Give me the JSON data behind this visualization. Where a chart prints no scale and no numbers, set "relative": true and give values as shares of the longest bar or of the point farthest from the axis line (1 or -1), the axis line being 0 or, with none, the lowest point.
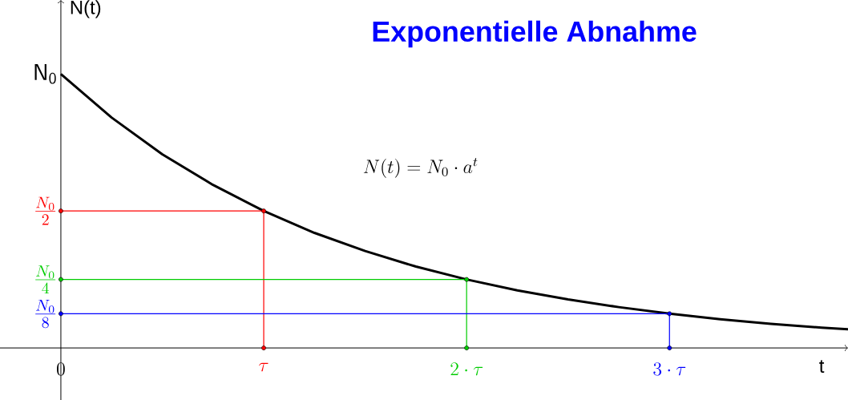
{
  "chart_data": {
    "type": "line",
    "title": "Exponentielle Abnahme",
    "xlabel": "t",
    "ylabel": "N(t)",
    "relative": true,
    "xlim": [
      -0.3,
      3.88
    ],
    "xticks": [
      {
        "value": 0,
        "label": "0"
      },
      {
        "value": 1,
        "label": "\\tau"
      },
      {
        "value": 2,
        "label": "2\\cdot\\tau"
      },
      {
        "value": 3,
        "label": "3\\cdot\\tau"
      }
    ],
    "series": [
      {
        "color": "#000000",
        "marker": "none",
        "x": [
          0,
          0.25,
          0.5,
          0.75,
          1,
          1.25,
          1.5,
          1.75,
          2,
          2.25,
          2.5,
          2.75,
          3,
          3.25,
          3.5,
          3.75,
          3.88
        ],
        "values": [
          1,
          0.841,
          0.707,
          0.595,
          0.5,
          0.42,
          0.354,
          0.297,
          0.25,
          0.21,
          0.177,
          0.149,
          0.125,
          0.105,
          0.088,
          0.074,
          0.068
        ]
      },
      {
        "color": "#ff0000",
        "marker": "circle",
        "x": [
          0,
          1,
          1
        ],
        "values": [
          0.5,
          0.5,
          0
        ]
      },
      {
        "color": "#00cc00",
        "marker": "circle",
        "x": [
          0,
          2,
          2
        ],
        "values": [
          0.25,
          0.25,
          0
        ]
      },
      {
        "color": "#0000ff",
        "marker": "circle",
        "x": [
          0,
          3,
          3
        ],
        "values": [
          0.125,
          0.125,
          0
        ]
      }
    ],
    "annotations": [
      "N(t) = N_0 \\cdot a^t",
      "\\mathsf{N}_{\\mathsf{0}}",
      "\\frac{N_0}{2}",
      "\\frac{N_0}{4}",
      "\\frac{N_0}{8}"
    ]
  }
}
